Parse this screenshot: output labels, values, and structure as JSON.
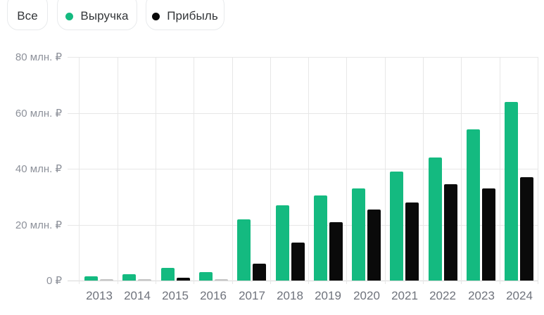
{
  "legend": {
    "all_label": "Все",
    "revenue_label": "Выручка",
    "profit_label": "Прибыль"
  },
  "colors": {
    "revenue": "#14ba80",
    "profit": "#0a0a0a",
    "small_value_bar": "#c6c6c6",
    "gridline": "#e7e7e7",
    "axis_line": "#d9d9d9",
    "y_label_text": "#8d919a",
    "x_label_text": "#6f737c",
    "legend_text": "#333639"
  },
  "chart_data": {
    "type": "bar",
    "title": "",
    "categories": [
      "2013",
      "2014",
      "2015",
      "2016",
      "2017",
      "2018",
      "2019",
      "2020",
      "2021",
      "2022",
      "2023",
      "2024"
    ],
    "series": [
      {
        "name": "Выручка",
        "color": "#14ba80",
        "values": [
          1.5,
          2.3,
          4.6,
          3.1,
          22,
          27,
          30.5,
          33,
          39,
          44,
          54,
          64
        ]
      },
      {
        "name": "Прибыль",
        "color": "#0a0a0a",
        "values": [
          0.3,
          0.3,
          1,
          0.3,
          6,
          13.5,
          21,
          25.5,
          28,
          34.5,
          33,
          37
        ]
      }
    ],
    "unit": "млн. ₽",
    "y_ticks": [
      {
        "value": 0,
        "label": "0 ₽"
      },
      {
        "value": 20,
        "label": "20 млн. ₽"
      },
      {
        "value": 40,
        "label": "40 млн. ₽"
      },
      {
        "value": 60,
        "label": "60 млн. ₽"
      },
      {
        "value": 80,
        "label": "80 млн. ₽"
      }
    ],
    "ylim": [
      0,
      80
    ],
    "grid": true,
    "legend_position": "top"
  }
}
